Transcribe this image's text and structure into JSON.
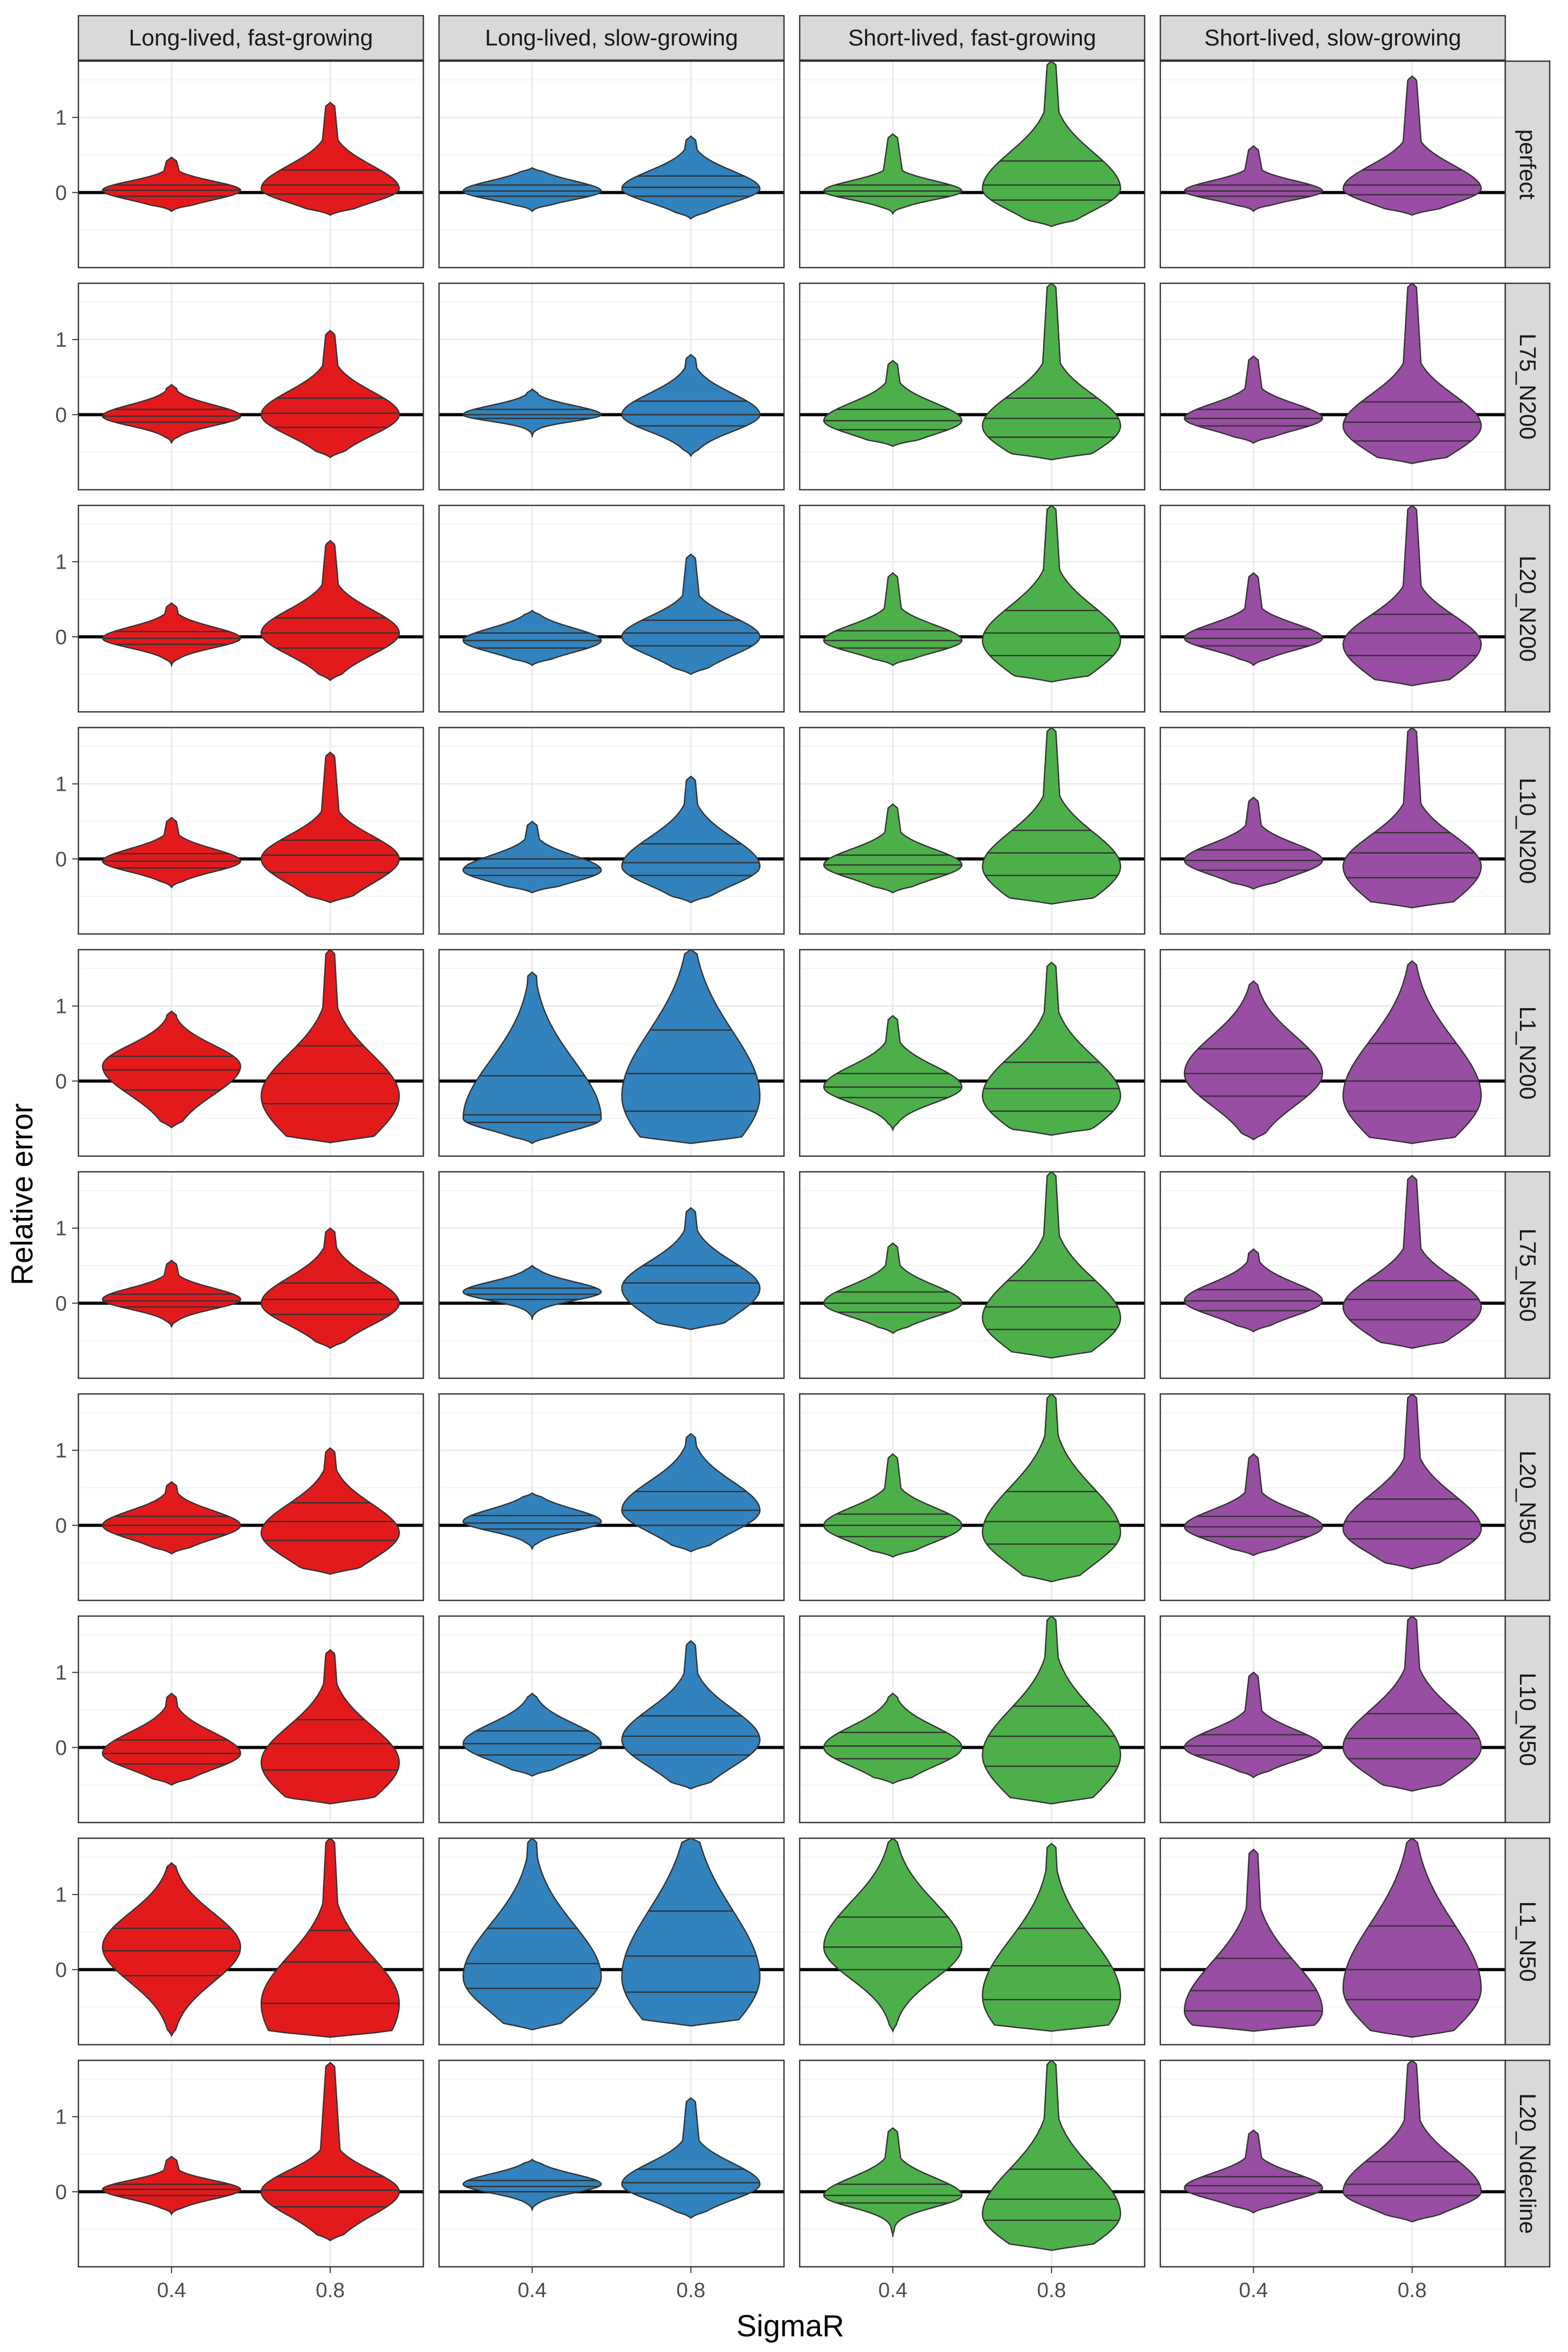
{
  "chart_data": {
    "type": "violin",
    "xlabel": "SigmaR",
    "ylabel": "Relative error",
    "x_categories": [
      "0.4",
      "0.8"
    ],
    "y_ticks": [
      0,
      1
    ],
    "ylim": [
      -1.0,
      1.75
    ],
    "grid": true,
    "reference_line_y": 0,
    "quantile_lines": [
      0.25,
      0.5,
      0.75
    ],
    "columns": [
      "Long-lived, fast-growing",
      "Long-lived, slow-growing",
      "Short-lived, fast-growing",
      "Short-lived, slow-growing"
    ],
    "rows": [
      "perfect",
      "L75_N200",
      "L20_N200",
      "L10_N200",
      "L1_N200",
      "L75_N50",
      "L20_N50",
      "L10_N50",
      "L1_N50",
      "L20_Ndecline"
    ],
    "colors": [
      "#e31a1c",
      "#3182bd",
      "#4daf4a",
      "#984ea3"
    ],
    "cells": [
      [
        [
          {
            "min": -0.25,
            "q1": -0.05,
            "median": 0.03,
            "q3": 0.1,
            "max": 0.47,
            "peak": 0.03
          },
          {
            "min": -0.3,
            "q1": -0.02,
            "median": 0.1,
            "q3": 0.3,
            "max": 1.2,
            "peak": 0.05
          }
        ],
        [
          {
            "min": -0.25,
            "q1": -0.05,
            "median": 0.02,
            "q3": 0.1,
            "max": 0.33,
            "peak": 0.02
          },
          {
            "min": -0.35,
            "q1": -0.05,
            "median": 0.07,
            "q3": 0.22,
            "max": 0.75,
            "peak": 0.05
          }
        ],
        [
          {
            "min": -0.28,
            "q1": -0.05,
            "median": 0.02,
            "q3": 0.1,
            "max": 0.78,
            "peak": 0.02
          },
          {
            "min": -0.45,
            "q1": -0.1,
            "median": 0.1,
            "q3": 0.42,
            "max": 1.75,
            "peak": 0.05
          }
        ],
        [
          {
            "min": -0.25,
            "q1": -0.05,
            "median": 0.02,
            "q3": 0.1,
            "max": 0.62,
            "peak": 0.02
          },
          {
            "min": -0.3,
            "q1": -0.03,
            "median": 0.1,
            "q3": 0.3,
            "max": 1.55,
            "peak": 0.05
          }
        ]
      ],
      [
        [
          {
            "min": -0.38,
            "q1": -0.1,
            "median": -0.02,
            "q3": 0.07,
            "max": 0.4,
            "peak": -0.02
          },
          {
            "min": -0.57,
            "q1": -0.17,
            "median": 0.02,
            "q3": 0.22,
            "max": 1.12,
            "peak": 0.0
          }
        ],
        [
          {
            "min": -0.3,
            "q1": -0.05,
            "median": 0.0,
            "q3": 0.07,
            "max": 0.34,
            "peak": 0.0
          },
          {
            "min": -0.55,
            "q1": -0.15,
            "median": 0.0,
            "q3": 0.18,
            "max": 0.8,
            "peak": 0.0
          }
        ],
        [
          {
            "min": -0.42,
            "q1": -0.2,
            "median": -0.08,
            "q3": 0.07,
            "max": 0.72,
            "peak": -0.08
          },
          {
            "min": -0.6,
            "q1": -0.3,
            "median": -0.05,
            "q3": 0.22,
            "max": 1.75,
            "peak": -0.15
          }
        ],
        [
          {
            "min": -0.38,
            "q1": -0.15,
            "median": -0.05,
            "q3": 0.07,
            "max": 0.78,
            "peak": -0.05
          },
          {
            "min": -0.65,
            "q1": -0.35,
            "median": -0.1,
            "q3": 0.17,
            "max": 1.75,
            "peak": -0.15
          }
        ]
      ],
      [
        [
          {
            "min": -0.38,
            "q1": -0.1,
            "median": -0.02,
            "q3": 0.07,
            "max": 0.45,
            "peak": -0.02
          },
          {
            "min": -0.58,
            "q1": -0.15,
            "median": 0.05,
            "q3": 0.25,
            "max": 1.28,
            "peak": 0.05
          }
        ],
        [
          {
            "min": -0.38,
            "q1": -0.15,
            "median": -0.05,
            "q3": 0.05,
            "max": 0.35,
            "peak": -0.05
          },
          {
            "min": -0.5,
            "q1": -0.12,
            "median": 0.05,
            "q3": 0.22,
            "max": 1.1,
            "peak": 0.0
          }
        ],
        [
          {
            "min": -0.38,
            "q1": -0.15,
            "median": -0.05,
            "q3": 0.08,
            "max": 0.85,
            "peak": -0.05
          },
          {
            "min": -0.6,
            "q1": -0.25,
            "median": 0.05,
            "q3": 0.35,
            "max": 1.75,
            "peak": -0.05
          }
        ],
        [
          {
            "min": -0.38,
            "q1": -0.12,
            "median": -0.02,
            "q3": 0.1,
            "max": 0.85,
            "peak": -0.02
          },
          {
            "min": -0.65,
            "q1": -0.25,
            "median": 0.05,
            "q3": 0.3,
            "max": 1.75,
            "peak": -0.1
          }
        ]
      ],
      [
        [
          {
            "min": -0.38,
            "q1": -0.12,
            "median": -0.03,
            "q3": 0.07,
            "max": 0.55,
            "peak": -0.03
          },
          {
            "min": -0.58,
            "q1": -0.18,
            "median": 0.05,
            "q3": 0.25,
            "max": 1.42,
            "peak": 0.0
          }
        ],
        [
          {
            "min": -0.45,
            "q1": -0.22,
            "median": -0.12,
            "q3": 0.0,
            "max": 0.5,
            "peak": -0.15
          },
          {
            "min": -0.58,
            "q1": -0.22,
            "median": -0.05,
            "q3": 0.2,
            "max": 1.1,
            "peak": -0.1
          }
        ],
        [
          {
            "min": -0.45,
            "q1": -0.2,
            "median": -0.08,
            "q3": 0.05,
            "max": 0.73,
            "peak": -0.08
          },
          {
            "min": -0.6,
            "q1": -0.22,
            "median": 0.08,
            "q3": 0.38,
            "max": 1.75,
            "peak": -0.1
          }
        ],
        [
          {
            "min": -0.4,
            "q1": -0.15,
            "median": -0.02,
            "q3": 0.12,
            "max": 0.82,
            "peak": -0.02
          },
          {
            "min": -0.65,
            "q1": -0.25,
            "median": 0.08,
            "q3": 0.35,
            "max": 1.75,
            "peak": -0.1
          }
        ]
      ],
      [
        [
          {
            "min": -0.62,
            "q1": -0.12,
            "median": 0.15,
            "q3": 0.33,
            "max": 0.93,
            "peak": 0.2
          },
          {
            "min": -0.82,
            "q1": -0.3,
            "median": 0.1,
            "q3": 0.47,
            "max": 1.75,
            "peak": -0.2
          }
        ],
        [
          {
            "min": -0.83,
            "q1": -0.55,
            "median": -0.45,
            "q3": 0.07,
            "max": 1.45,
            "peak": -0.5
          },
          {
            "min": -0.83,
            "q1": -0.4,
            "median": 0.1,
            "q3": 0.68,
            "max": 1.75,
            "peak": -0.2
          }
        ],
        [
          {
            "min": -0.65,
            "q1": -0.22,
            "median": -0.08,
            "q3": 0.1,
            "max": 0.87,
            "peak": -0.08
          },
          {
            "min": -0.72,
            "q1": -0.4,
            "median": -0.1,
            "q3": 0.25,
            "max": 1.58,
            "peak": -0.2
          }
        ],
        [
          {
            "min": -0.78,
            "q1": -0.2,
            "median": 0.1,
            "q3": 0.43,
            "max": 1.33,
            "peak": 0.1
          },
          {
            "min": -0.83,
            "q1": -0.4,
            "median": 0.0,
            "q3": 0.5,
            "max": 1.6,
            "peak": -0.2
          }
        ]
      ],
      [
        [
          {
            "min": -0.32,
            "q1": -0.05,
            "median": 0.03,
            "q3": 0.12,
            "max": 0.57,
            "peak": 0.05
          },
          {
            "min": -0.6,
            "q1": -0.15,
            "median": 0.05,
            "q3": 0.27,
            "max": 1.0,
            "peak": 0.0
          }
        ],
        [
          {
            "min": -0.22,
            "q1": 0.05,
            "median": 0.12,
            "q3": 0.2,
            "max": 0.5,
            "peak": 0.15
          },
          {
            "min": -0.35,
            "q1": 0.0,
            "median": 0.27,
            "q3": 0.5,
            "max": 1.27,
            "peak": 0.2
          }
        ],
        [
          {
            "min": -0.4,
            "q1": -0.12,
            "median": 0.0,
            "q3": 0.15,
            "max": 0.8,
            "peak": 0.0
          },
          {
            "min": -0.73,
            "q1": -0.35,
            "median": -0.05,
            "q3": 0.3,
            "max": 1.75,
            "peak": -0.2
          }
        ],
        [
          {
            "min": -0.38,
            "q1": -0.1,
            "median": 0.03,
            "q3": 0.18,
            "max": 0.72,
            "peak": 0.03
          },
          {
            "min": -0.6,
            "q1": -0.22,
            "median": 0.05,
            "q3": 0.3,
            "max": 1.7,
            "peak": -0.05
          }
        ]
      ],
      [
        [
          {
            "min": -0.38,
            "q1": -0.12,
            "median": 0.0,
            "q3": 0.12,
            "max": 0.58,
            "peak": 0.0
          },
          {
            "min": -0.65,
            "q1": -0.2,
            "median": 0.05,
            "q3": 0.3,
            "max": 1.03,
            "peak": -0.1
          }
        ],
        [
          {
            "min": -0.32,
            "q1": -0.05,
            "median": 0.03,
            "q3": 0.13,
            "max": 0.43,
            "peak": 0.05
          },
          {
            "min": -0.35,
            "q1": 0.0,
            "median": 0.2,
            "q3": 0.45,
            "max": 1.22,
            "peak": 0.2
          }
        ],
        [
          {
            "min": -0.42,
            "q1": -0.15,
            "median": 0.0,
            "q3": 0.15,
            "max": 0.95,
            "peak": 0.0
          },
          {
            "min": -0.75,
            "q1": -0.25,
            "median": 0.05,
            "q3": 0.45,
            "max": 1.75,
            "peak": -0.1
          }
        ],
        [
          {
            "min": -0.4,
            "q1": -0.15,
            "median": -0.02,
            "q3": 0.12,
            "max": 0.95,
            "peak": -0.02
          },
          {
            "min": -0.58,
            "q1": -0.18,
            "median": 0.05,
            "q3": 0.35,
            "max": 1.75,
            "peak": -0.05
          }
        ]
      ],
      [
        [
          {
            "min": -0.5,
            "q1": -0.22,
            "median": -0.08,
            "q3": 0.1,
            "max": 0.72,
            "peak": -0.08
          },
          {
            "min": -0.75,
            "q1": -0.3,
            "median": 0.05,
            "q3": 0.37,
            "max": 1.3,
            "peak": -0.2
          }
        ],
        [
          {
            "min": -0.38,
            "q1": -0.1,
            "median": 0.05,
            "q3": 0.22,
            "max": 0.72,
            "peak": 0.05
          },
          {
            "min": -0.55,
            "q1": -0.1,
            "median": 0.15,
            "q3": 0.42,
            "max": 1.42,
            "peak": 0.1
          }
        ],
        [
          {
            "min": -0.48,
            "q1": -0.15,
            "median": 0.02,
            "q3": 0.2,
            "max": 0.72,
            "peak": 0.0
          },
          {
            "min": -0.75,
            "q1": -0.25,
            "median": 0.15,
            "q3": 0.55,
            "max": 1.75,
            "peak": -0.1
          }
        ],
        [
          {
            "min": -0.4,
            "q1": -0.1,
            "median": 0.02,
            "q3": 0.17,
            "max": 1.0,
            "peak": 0.0
          },
          {
            "min": -0.58,
            "q1": -0.15,
            "median": 0.12,
            "q3": 0.45,
            "max": 1.75,
            "peak": 0.0
          }
        ]
      ],
      [
        [
          {
            "min": -0.88,
            "q1": -0.08,
            "median": 0.25,
            "q3": 0.55,
            "max": 1.42,
            "peak": 0.3
          },
          {
            "min": -0.9,
            "q1": -0.45,
            "median": 0.1,
            "q3": 0.52,
            "max": 1.75,
            "peak": -0.45
          }
        ],
        [
          {
            "min": -0.8,
            "q1": -0.25,
            "median": 0.08,
            "q3": 0.55,
            "max": 1.75,
            "peak": -0.1
          },
          {
            "min": -0.75,
            "q1": -0.3,
            "median": 0.18,
            "q3": 0.78,
            "max": 1.75,
            "peak": -0.1
          }
        ],
        [
          {
            "min": -0.82,
            "q1": 0.0,
            "median": 0.3,
            "q3": 0.7,
            "max": 1.75,
            "peak": 0.3
          },
          {
            "min": -0.82,
            "q1": -0.4,
            "median": 0.05,
            "q3": 0.55,
            "max": 1.68,
            "peak": -0.35
          }
        ],
        [
          {
            "min": -0.82,
            "q1": -0.55,
            "median": -0.28,
            "q3": 0.15,
            "max": 1.6,
            "peak": -0.55
          },
          {
            "min": -0.9,
            "q1": -0.4,
            "median": 0.0,
            "q3": 0.58,
            "max": 1.75,
            "peak": -0.25
          }
        ]
      ],
      [
        [
          {
            "min": -0.3,
            "q1": -0.05,
            "median": 0.03,
            "q3": 0.1,
            "max": 0.47,
            "peak": 0.03
          },
          {
            "min": -0.65,
            "q1": -0.2,
            "median": 0.02,
            "q3": 0.2,
            "max": 1.72,
            "peak": 0.0
          }
        ],
        [
          {
            "min": -0.25,
            "q1": 0.0,
            "median": 0.07,
            "q3": 0.15,
            "max": 0.43,
            "peak": 0.1
          },
          {
            "min": -0.35,
            "q1": -0.02,
            "median": 0.12,
            "q3": 0.3,
            "max": 1.25,
            "peak": 0.1
          }
        ],
        [
          {
            "min": -0.6,
            "q1": -0.15,
            "median": -0.05,
            "q3": 0.1,
            "max": 0.85,
            "peak": -0.05
          },
          {
            "min": -0.78,
            "q1": -0.38,
            "median": -0.1,
            "q3": 0.3,
            "max": 1.75,
            "peak": -0.3
          }
        ],
        [
          {
            "min": -0.28,
            "q1": -0.02,
            "median": 0.08,
            "q3": 0.2,
            "max": 0.82,
            "peak": 0.05
          },
          {
            "min": -0.4,
            "q1": -0.05,
            "median": 0.1,
            "q3": 0.4,
            "max": 1.75,
            "peak": 0.0
          }
        ]
      ]
    ]
  }
}
